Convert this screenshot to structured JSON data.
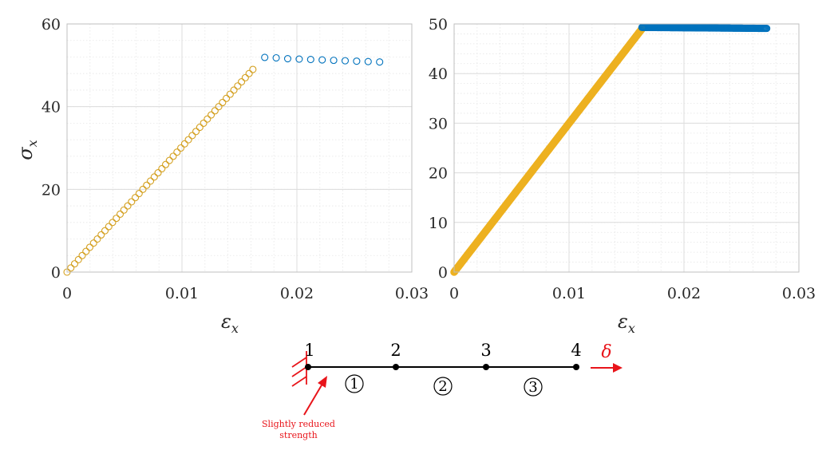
{
  "colors": {
    "elastic": "#d4a020",
    "elastic_dense": "#edb120",
    "softening": "#0072bd",
    "annotation": "#e8141a",
    "grid": "#e6e6e6"
  },
  "chart_data": [
    {
      "type": "scatter",
      "title": "",
      "xlabel": "ε",
      "xlabel_sub": "x",
      "ylabel": "σ",
      "ylabel_sub": "x",
      "xlim": [
        0,
        0.03
      ],
      "ylim": [
        0,
        60
      ],
      "xticks": [
        "0",
        "0.01",
        "0.02",
        "0.03"
      ],
      "yticks": [
        "0",
        "20",
        "40",
        "60"
      ],
      "grid": true,
      "minor_grid": true,
      "marker": "open-circle",
      "series": [
        {
          "points": [
            [
              0.0,
              0.0
            ],
            [
              0.00033,
              1.0
            ],
            [
              0.00066,
              2.0
            ],
            [
              0.00099,
              3.0
            ],
            [
              0.00132,
              4.0
            ],
            [
              0.00165,
              5.0
            ],
            [
              0.00198,
              6.0
            ],
            [
              0.00231,
              7.0
            ],
            [
              0.00264,
              8.0
            ],
            [
              0.00297,
              9.0
            ],
            [
              0.0033,
              10.0
            ],
            [
              0.00363,
              11.0
            ],
            [
              0.00396,
              12.0
            ],
            [
              0.00429,
              13.0
            ],
            [
              0.00462,
              14.0
            ],
            [
              0.00495,
              15.0
            ],
            [
              0.00528,
              16.0
            ],
            [
              0.00561,
              17.0
            ],
            [
              0.00594,
              18.0
            ],
            [
              0.00627,
              19.0
            ],
            [
              0.0066,
              20.0
            ],
            [
              0.00693,
              21.0
            ],
            [
              0.00726,
              22.0
            ],
            [
              0.00759,
              23.0
            ],
            [
              0.00792,
              24.0
            ],
            [
              0.00825,
              25.0
            ],
            [
              0.00858,
              26.0
            ],
            [
              0.00891,
              27.0
            ],
            [
              0.00924,
              28.0
            ],
            [
              0.00957,
              29.0
            ],
            [
              0.0099,
              30.0
            ],
            [
              0.01023,
              31.0
            ],
            [
              0.01056,
              32.0
            ],
            [
              0.01089,
              33.0
            ],
            [
              0.01122,
              34.0
            ],
            [
              0.01155,
              35.0
            ],
            [
              0.01188,
              36.0
            ],
            [
              0.01221,
              37.0
            ],
            [
              0.01254,
              38.0
            ],
            [
              0.01287,
              39.0
            ],
            [
              0.0132,
              40.0
            ],
            [
              0.01353,
              41.0
            ],
            [
              0.01386,
              42.0
            ],
            [
              0.01419,
              43.0
            ],
            [
              0.01452,
              44.0
            ],
            [
              0.01485,
              45.0
            ],
            [
              0.01518,
              46.0
            ],
            [
              0.01551,
              47.0
            ],
            [
              0.01584,
              48.0
            ],
            [
              0.01617,
              49.0
            ]
          ]
        },
        {
          "points": [
            [
              0.0172,
              51.9
            ],
            [
              0.0182,
              51.8
            ],
            [
              0.0192,
              51.6
            ],
            [
              0.0202,
              51.5
            ],
            [
              0.0212,
              51.4
            ],
            [
              0.0222,
              51.3
            ],
            [
              0.0232,
              51.2
            ],
            [
              0.0242,
              51.1
            ],
            [
              0.0252,
              51.0
            ],
            [
              0.0262,
              50.9
            ],
            [
              0.0272,
              50.8
            ]
          ]
        }
      ]
    },
    {
      "type": "scatter",
      "title": "",
      "xlabel": "ε",
      "xlabel_sub": "x",
      "ylabel": "",
      "xlim": [
        0,
        0.03
      ],
      "ylim": [
        0,
        50
      ],
      "xticks": [
        "0",
        "0.01",
        "0.02",
        "0.03"
      ],
      "yticks": [
        "0",
        "10",
        "20",
        "30",
        "40",
        "50"
      ],
      "grid": true,
      "minor_grid": true,
      "marker": "open-circle",
      "series": [
        {
          "x_range": [
            0,
            0.01634
          ],
          "y_range": [
            0,
            49.0
          ],
          "count": 400
        },
        {
          "x_range": [
            0.01634,
            0.0272
          ],
          "y_range": [
            49.3,
            49.1
          ],
          "count": 150
        }
      ]
    }
  ],
  "diagram": {
    "nodes": [
      "1",
      "2",
      "3",
      "4"
    ],
    "elements": [
      "1",
      "2",
      "3"
    ],
    "load_symbol": "δ",
    "note_lines": [
      "Slightly reduced",
      "strength"
    ]
  }
}
